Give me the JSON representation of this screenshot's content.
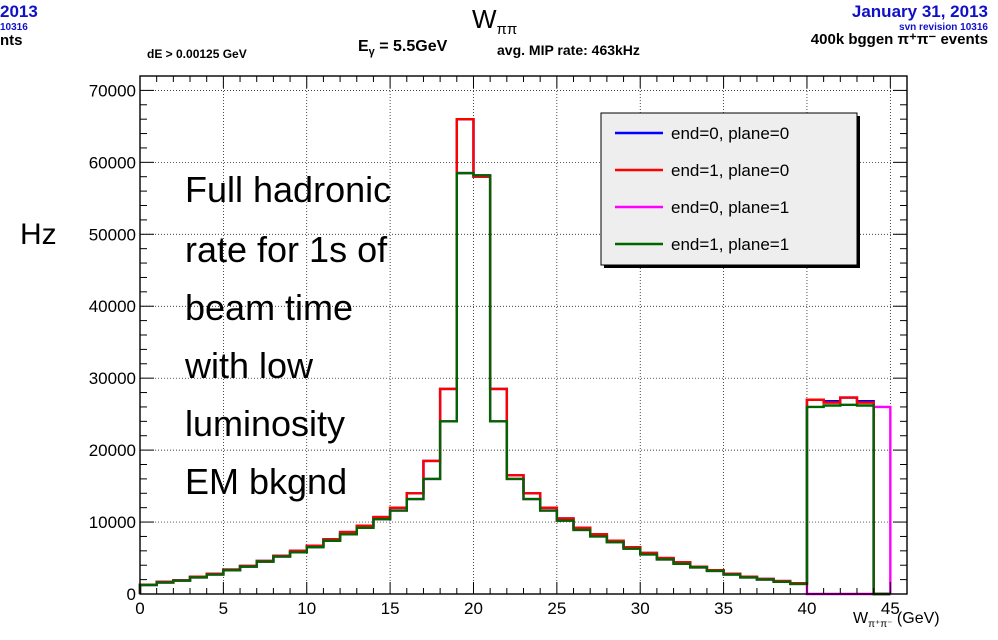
{
  "header": {
    "left_date": "2013",
    "left_rev": "10316",
    "left_events": "nts",
    "title_main": "W",
    "title_sub": "ππ",
    "right_date": "January 31, 2013",
    "right_rev": "svn revision 10316",
    "right_events": "400k bggen π⁺π⁻ events",
    "de_cut": "dE > 0.00125 GeV",
    "e_gamma": "E",
    "e_gamma_sub": "γ",
    "e_gamma_val": " = 5.5GeV",
    "mip_rate": "avg. MIP rate: 463kHz"
  },
  "annotation": {
    "lines": [
      "Full hadronic",
      "rate for 1s of",
      "beam time",
      "with low",
      "luminosity",
      "EM bkgnd"
    ]
  },
  "colors": {
    "series": [
      "#0000ff",
      "#ff0000",
      "#ff00ff",
      "#006400"
    ],
    "legend_bg": "#eeeeee"
  },
  "chart_data": {
    "type": "histogram-step",
    "title": "Wππ",
    "xlabel": "W",
    "xlabel_sub": "π⁺π⁻",
    "xlabel_unit": " (GeV)",
    "ylabel": "Hz",
    "xlim": [
      0,
      46
    ],
    "ylim": [
      0,
      72000
    ],
    "xticks": [
      0,
      5,
      10,
      15,
      20,
      25,
      30,
      35,
      40,
      45
    ],
    "yticks": [
      0,
      10000,
      20000,
      30000,
      40000,
      50000,
      60000,
      70000
    ],
    "grid": true,
    "legend_position": "top-right",
    "bin_edges": [
      0,
      1,
      2,
      3,
      4,
      5,
      6,
      7,
      8,
      9,
      10,
      11,
      12,
      13,
      14,
      15,
      16,
      17,
      18,
      19,
      20,
      21,
      22,
      23,
      24,
      25,
      26,
      27,
      28,
      29,
      30,
      31,
      32,
      33,
      34,
      35,
      36,
      37,
      38,
      39,
      40,
      41,
      42,
      43,
      44,
      45
    ],
    "series": [
      {
        "name": "end=0, plane=0",
        "values": [
          1300,
          1700,
          1900,
          2400,
          2800,
          3400,
          3900,
          4600,
          5300,
          6000,
          6700,
          7600,
          8600,
          9500,
          10700,
          12000,
          14000,
          18500,
          28500,
          66000,
          58000,
          28500,
          16500,
          14000,
          12000,
          10500,
          9200,
          8300,
          7400,
          6500,
          5700,
          5000,
          4400,
          3800,
          3300,
          2800,
          2400,
          2100,
          1800,
          1500,
          27000,
          26800,
          27300,
          26800,
          0
        ]
      },
      {
        "name": "end=1, plane=0",
        "values": [
          1300,
          1700,
          1900,
          2400,
          2800,
          3400,
          3900,
          4600,
          5300,
          6000,
          6700,
          7600,
          8600,
          9500,
          10700,
          12000,
          14000,
          18500,
          28500,
          66000,
          58000,
          28500,
          16500,
          14000,
          12000,
          10500,
          9200,
          8300,
          7400,
          6500,
          5700,
          5000,
          4400,
          3800,
          3300,
          2800,
          2400,
          2100,
          1800,
          1500,
          27000,
          26600,
          27300,
          26600,
          0
        ]
      },
      {
        "name": "end=0, plane=1",
        "values": [
          1250,
          1600,
          1850,
          2300,
          2700,
          3300,
          3800,
          4500,
          5200,
          5800,
          6500,
          7400,
          8300,
          9200,
          10400,
          11600,
          13200,
          16000,
          24000,
          58500,
          58200,
          24000,
          16000,
          13200,
          11600,
          10200,
          8900,
          8000,
          7200,
          6300,
          5500,
          4800,
          4200,
          3700,
          3200,
          2700,
          2300,
          2000,
          1700,
          1400,
          0,
          0,
          0,
          0,
          26000
        ]
      },
      {
        "name": "end=1, plane=1",
        "values": [
          1250,
          1600,
          1850,
          2300,
          2700,
          3300,
          3800,
          4500,
          5200,
          5800,
          6500,
          7400,
          8300,
          9200,
          10400,
          11600,
          13200,
          16000,
          24000,
          58500,
          58200,
          24000,
          16000,
          13200,
          11600,
          10200,
          8900,
          8000,
          7200,
          6300,
          5500,
          4800,
          4200,
          3700,
          3200,
          2700,
          2300,
          2000,
          1700,
          1400,
          26000,
          26200,
          26300,
          26200,
          0
        ]
      }
    ]
  }
}
